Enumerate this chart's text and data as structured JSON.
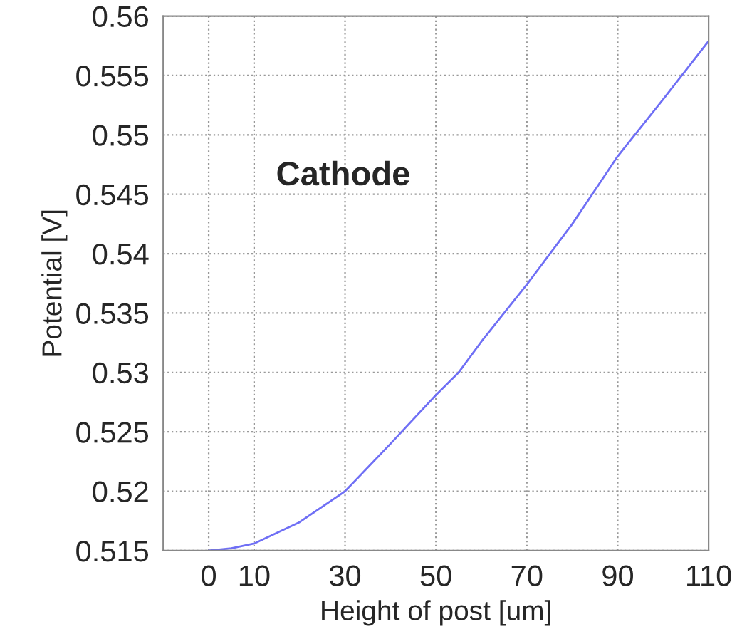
{
  "chart_data": {
    "type": "line",
    "xlabel": "Height of post [um]",
    "ylabel": "Potential [V]",
    "annotations": [
      "Cathode"
    ],
    "x": [
      0,
      5,
      10,
      20,
      30,
      40,
      50,
      55,
      60,
      70,
      80,
      90,
      100,
      110
    ],
    "series": [
      {
        "color": "#6f6ff5",
        "values": [
          0.515,
          0.5152,
          0.5156,
          0.5174,
          0.52,
          0.524,
          0.5281,
          0.53,
          0.5326,
          0.5374,
          0.5425,
          0.5482,
          0.553,
          0.5579
        ]
      }
    ],
    "xlim": [
      -10,
      110
    ],
    "xticks": [
      0,
      10,
      30,
      50,
      70,
      90,
      110
    ],
    "ylim": [
      0.515,
      0.56
    ],
    "yticks": [
      0.515,
      0.52,
      0.525,
      0.53,
      0.535,
      0.54,
      0.545,
      0.55,
      0.555,
      0.56
    ],
    "grid": true,
    "legend": false,
    "marker": "none",
    "line_style": "solid"
  }
}
